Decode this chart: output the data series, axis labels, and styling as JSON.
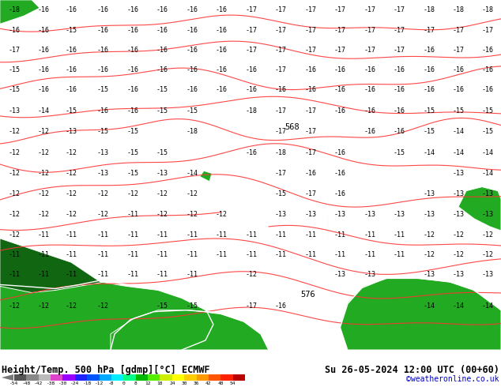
{
  "title_left": "Height/Temp. 500 hPa [gdmp][°C] ECMWF",
  "title_right": "Su 26-05-2024 12:00 UTC (00+60)",
  "credit": "©weatheronline.co.uk",
  "colorbar_colors": [
    "#555555",
    "#888888",
    "#bbbbbb",
    "#dd44cc",
    "#9900ff",
    "#2222ff",
    "#0055ff",
    "#00aaff",
    "#00eeff",
    "#00ff88",
    "#00bb00",
    "#55ee00",
    "#ccee00",
    "#ffff00",
    "#ffcc00",
    "#ff9900",
    "#ff5500",
    "#ff2200",
    "#bb0000"
  ],
  "colorbar_labels": [
    "-54",
    "-48",
    "-42",
    "-38",
    "-30",
    "-24",
    "-18",
    "-12",
    "-8",
    "0",
    "8",
    "12",
    "18",
    "24",
    "30",
    "36",
    "42",
    "48",
    "54"
  ],
  "bg_color": "#00ccee",
  "land_green": "#22aa22",
  "land_dark": "#116611",
  "contour_color": "#ff3333",
  "white_line": "#ffffff",
  "fig_width": 6.34,
  "fig_height": 4.9,
  "dpi": 100
}
